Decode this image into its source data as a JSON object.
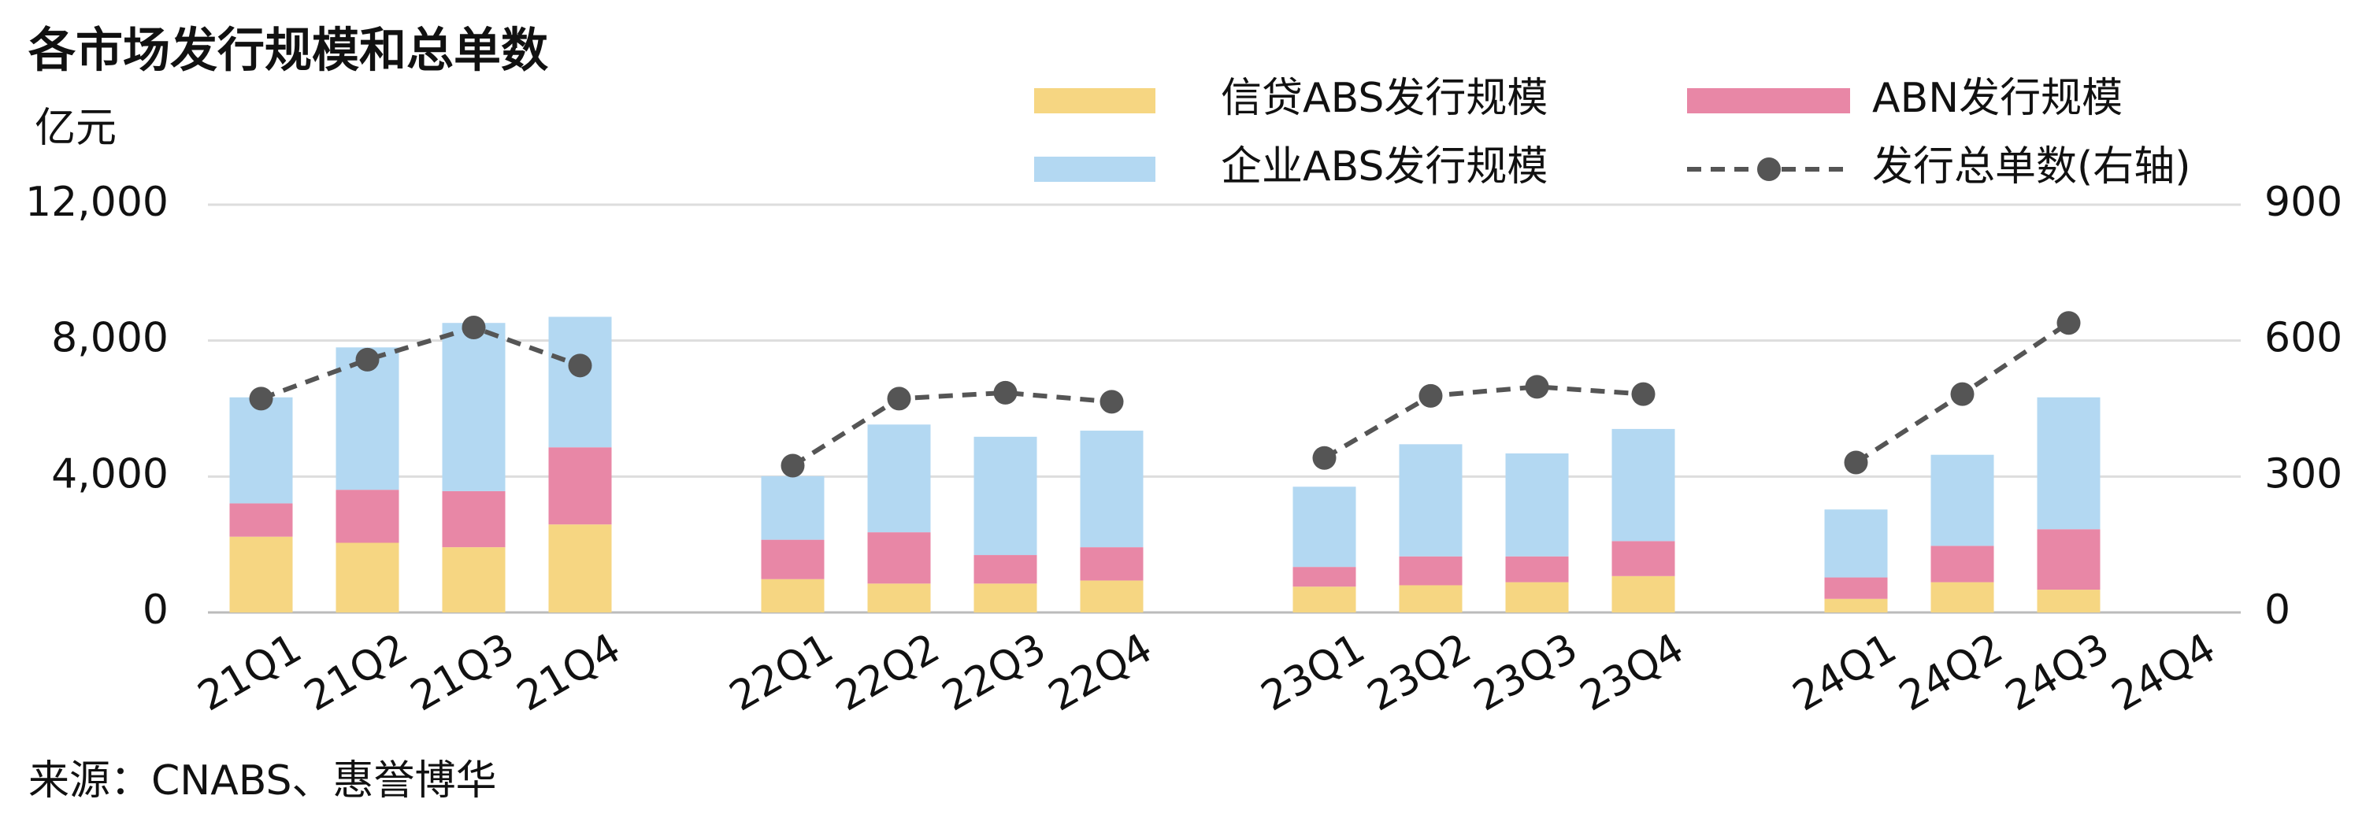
{
  "chart_data": {
    "type": "bar",
    "stacked": true,
    "title": "各市场发行规模和总单数",
    "y_label": "亿元",
    "source": "来源：CNABS、惠誉博华",
    "categories": [
      "21Q1",
      "21Q2",
      "21Q3",
      "21Q4",
      null,
      "22Q1",
      "22Q2",
      "22Q3",
      "22Q4",
      null,
      "23Q1",
      "23Q2",
      "23Q3",
      "23Q4",
      null,
      "24Q1",
      "24Q2",
      "24Q3",
      "24Q4"
    ],
    "series": [
      {
        "name": "信贷ABS发行规模",
        "color": "#f6d682",
        "values": [
          2230,
          2050,
          1920,
          2590,
          null,
          980,
          850,
          850,
          940,
          null,
          760,
          800,
          890,
          1070,
          null,
          400,
          890,
          670,
          null
        ]
      },
      {
        "name": "ABN发行规模",
        "color": "#e887a6",
        "values": [
          980,
          1560,
          1650,
          2270,
          null,
          1160,
          1510,
          840,
          980,
          null,
          580,
          850,
          760,
          1030,
          null,
          630,
          1070,
          1780,
          null
        ]
      },
      {
        "name": "企业ABS发行规模",
        "color": "#b3d8f2",
        "values": [
          3120,
          4190,
          4950,
          3840,
          null,
          1870,
          3170,
          3480,
          3430,
          null,
          2360,
          3300,
          3030,
          3300,
          null,
          2000,
          2680,
          3880,
          null
        ]
      },
      {
        "name": "发行总单数(右轴)",
        "color": "#555555",
        "type": "line",
        "axis": "y2",
        "values": [
          472,
          558,
          629,
          545,
          null,
          324,
          472,
          485,
          465,
          null,
          341,
          478,
          498,
          482,
          null,
          331,
          482,
          639,
          null
        ]
      }
    ],
    "ylim": [
      0,
      12000
    ],
    "yticks": [
      0,
      {
        "value": 4000,
        "label": "4,000"
      },
      {
        "value": 8000,
        "label": "8,000"
      },
      {
        "value": 12000,
        "label": "12,000"
      }
    ],
    "y2lim": [
      0,
      900
    ],
    "y2ticks": [
      0,
      300,
      600,
      900
    ],
    "grid": true
  }
}
